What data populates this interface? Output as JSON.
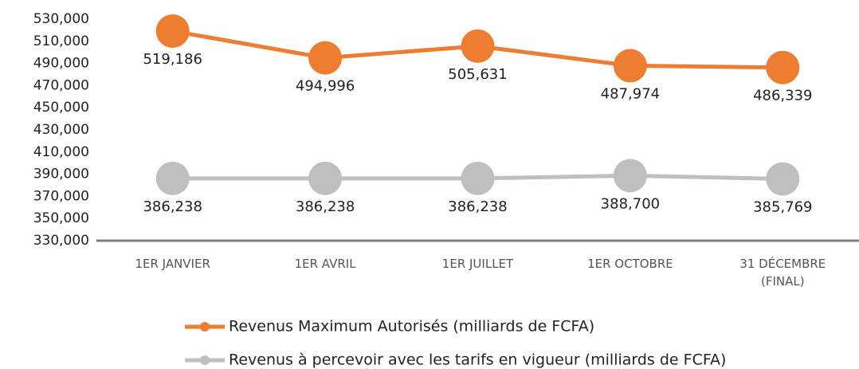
{
  "chart_data": {
    "type": "line",
    "categories": [
      "1ER JANVIER",
      "1ER AVRIL",
      "1ER JUILLET",
      "1ER OCTOBRE",
      "31 DÉCEMBRE (FINAL)"
    ],
    "series": [
      {
        "name": "Revenus Maximum Autorisés (milliards de FCFA)",
        "color": "#ED7D31",
        "values": [
          519186,
          494996,
          505631,
          487974,
          486339
        ],
        "value_labels": [
          "519,186",
          "494,996",
          "505,631",
          "487,974",
          "486,339"
        ]
      },
      {
        "name": "Revenus à percevoir avec les tarifs en vigueur (milliards de FCFA)",
        "color": "#BFBFBF",
        "values": [
          386238,
          386238,
          386238,
          388700,
          385769
        ],
        "value_labels": [
          "386,238",
          "386,238",
          "386,238",
          "388,700",
          "385,769"
        ]
      }
    ],
    "ylim": [
      330000,
      530000
    ],
    "yticks": [
      {
        "value": 330000,
        "label": "330,000"
      },
      {
        "value": 350000,
        "label": "350,000"
      },
      {
        "value": 370000,
        "label": "370,000"
      },
      {
        "value": 390000,
        "label": "390,000"
      },
      {
        "value": 410000,
        "label": "410,000"
      },
      {
        "value": 430000,
        "label": "430,000"
      },
      {
        "value": 450000,
        "label": "450,000"
      },
      {
        "value": 470000,
        "label": "470,000"
      },
      {
        "value": 490000,
        "label": "490,000"
      },
      {
        "value": 510000,
        "label": "510,000"
      },
      {
        "value": 530000,
        "label": "530,000"
      }
    ],
    "grid": false,
    "legend": "bottom"
  }
}
